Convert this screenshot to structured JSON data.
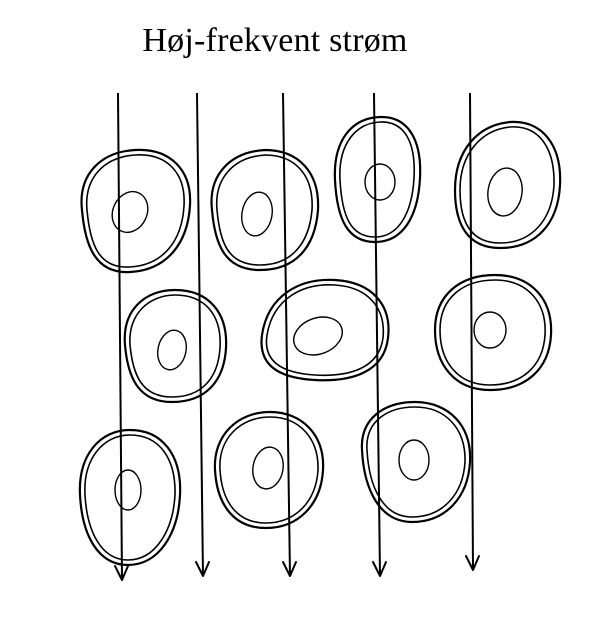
{
  "title": "Høj-frekvent strøm",
  "colors": {
    "ink": "#000000",
    "background": "#ffffff"
  }
}
